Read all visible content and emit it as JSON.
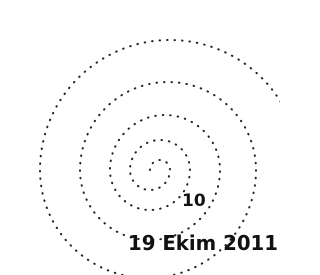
{
  "stamp": {
    "number": "10",
    "date": "19 Ekim 2011"
  }
}
